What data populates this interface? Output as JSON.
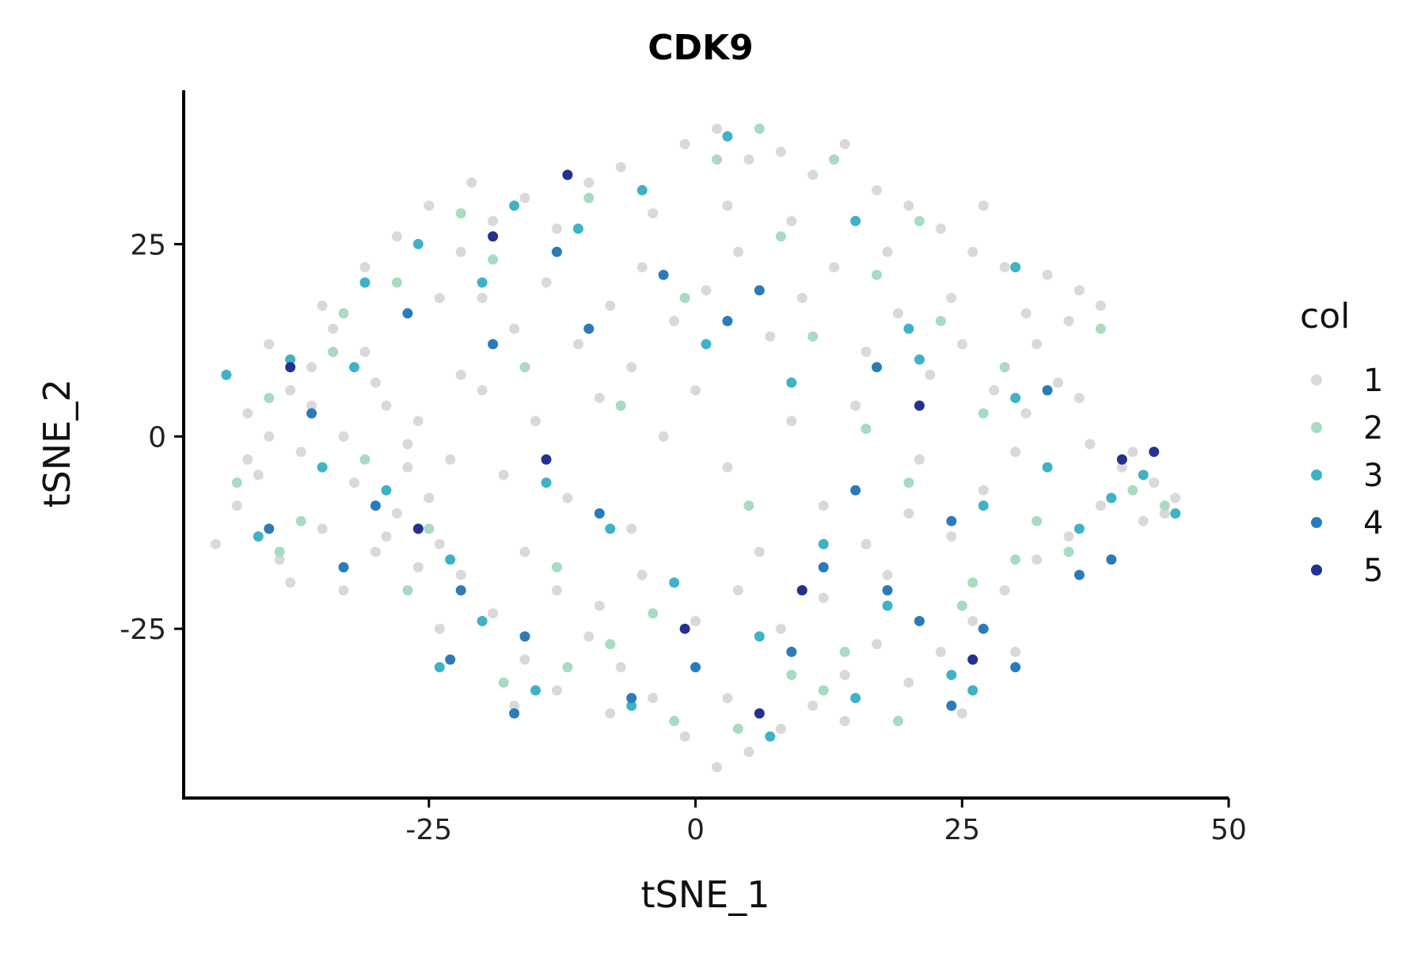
{
  "chart_data": {
    "type": "scatter",
    "title": "CDK9",
    "xlabel": "tSNE_1",
    "ylabel": "tSNE_2",
    "xlim": [
      -48,
      50
    ],
    "ylim": [
      -47,
      45
    ],
    "x_ticks": [
      -25,
      0,
      25,
      50
    ],
    "x_tick_labels": [
      "-25",
      "0",
      "25",
      "50"
    ],
    "y_ticks": [
      -25,
      0,
      25
    ],
    "y_tick_labels": [
      "-25",
      "0",
      "25"
    ],
    "grid": false,
    "legend": {
      "title": "col",
      "placement": "right",
      "entries": [
        {
          "label": "1",
          "color": "#d9d9d9"
        },
        {
          "label": "2",
          "color": "#a8dbc1"
        },
        {
          "label": "3",
          "color": "#3fb2c6"
        },
        {
          "label": "4",
          "color": "#2b7bb9"
        },
        {
          "label": "5",
          "color": "#23318f"
        }
      ]
    },
    "series": [
      {
        "name": "1",
        "color": "#d9d9d9",
        "points": [
          [
            -45,
            -14
          ],
          [
            -44,
            8
          ],
          [
            -43,
            -9
          ],
          [
            -42,
            3
          ],
          [
            -41,
            -5
          ],
          [
            -40,
            12
          ],
          [
            -39,
            -16
          ],
          [
            -38,
            6
          ],
          [
            -37,
            -2
          ],
          [
            -36,
            9
          ],
          [
            -35,
            -12
          ],
          [
            -34,
            14
          ],
          [
            -33,
            0
          ],
          [
            -32,
            -6
          ],
          [
            -31,
            11
          ],
          [
            -30,
            -15
          ],
          [
            -29,
            4
          ],
          [
            -28,
            -10
          ],
          [
            -27,
            -1
          ],
          [
            -26,
            -17
          ],
          [
            -26,
            2
          ],
          [
            -25,
            -8
          ],
          [
            -24,
            -14
          ],
          [
            -23,
            -3
          ],
          [
            -22,
            8
          ],
          [
            -31,
            22
          ],
          [
            -28,
            26
          ],
          [
            -25,
            30
          ],
          [
            -22,
            24
          ],
          [
            -19,
            28
          ],
          [
            -16,
            31
          ],
          [
            -13,
            27
          ],
          [
            -10,
            33
          ],
          [
            -7,
            35
          ],
          [
            -4,
            29
          ],
          [
            -1,
            38
          ],
          [
            2,
            40
          ],
          [
            5,
            36
          ],
          [
            8,
            37
          ],
          [
            11,
            34
          ],
          [
            14,
            38
          ],
          [
            17,
            32
          ],
          [
            20,
            30
          ],
          [
            23,
            27
          ],
          [
            26,
            24
          ],
          [
            29,
            22
          ],
          [
            33,
            21
          ],
          [
            36,
            19
          ],
          [
            38,
            17
          ],
          [
            35,
            15
          ],
          [
            31,
            16
          ],
          [
            -20,
            18
          ],
          [
            -17,
            14
          ],
          [
            -14,
            20
          ],
          [
            -11,
            12
          ],
          [
            -8,
            17
          ],
          [
            -5,
            22
          ],
          [
            -2,
            15
          ],
          [
            1,
            19
          ],
          [
            4,
            24
          ],
          [
            7,
            13
          ],
          [
            10,
            18
          ],
          [
            13,
            22
          ],
          [
            16,
            11
          ],
          [
            19,
            16
          ],
          [
            22,
            8
          ],
          [
            25,
            12
          ],
          [
            28,
            6
          ],
          [
            31,
            3
          ],
          [
            34,
            7
          ],
          [
            37,
            -1
          ],
          [
            40,
            -4
          ],
          [
            43,
            -6
          ],
          [
            45,
            -8
          ],
          [
            42,
            -11
          ],
          [
            38,
            -9
          ],
          [
            35,
            -13
          ],
          [
            32,
            -16
          ],
          [
            29,
            -20
          ],
          [
            26,
            -24
          ],
          [
            23,
            -28
          ],
          [
            20,
            -32
          ],
          [
            17,
            -27
          ],
          [
            14,
            -31
          ],
          [
            11,
            -35
          ],
          [
            8,
            -38
          ],
          [
            5,
            -41
          ],
          [
            2,
            -43
          ],
          [
            -1,
            -39
          ],
          [
            -4,
            -34
          ],
          [
            -7,
            -30
          ],
          [
            -10,
            -26
          ],
          [
            -13,
            -33
          ],
          [
            -16,
            -29
          ],
          [
            -19,
            -23
          ],
          [
            -22,
            -18
          ],
          [
            -18,
            -5
          ],
          [
            -15,
            2
          ],
          [
            -12,
            -8
          ],
          [
            -9,
            5
          ],
          [
            -6,
            -12
          ],
          [
            -3,
            0
          ],
          [
            0,
            6
          ],
          [
            3,
            -4
          ],
          [
            6,
            -15
          ],
          [
            9,
            2
          ],
          [
            12,
            -9
          ],
          [
            15,
            4
          ],
          [
            18,
            -18
          ],
          [
            21,
            -3
          ],
          [
            24,
            -13
          ],
          [
            27,
            -7
          ],
          [
            30,
            -2
          ],
          [
            -20,
            6
          ],
          [
            -16,
            -15
          ],
          [
            -13,
            -20
          ],
          [
            -9,
            -22
          ],
          [
            -5,
            -18
          ],
          [
            0,
            -24
          ],
          [
            4,
            -20
          ],
          [
            8,
            -25
          ],
          [
            12,
            -21
          ],
          [
            16,
            -14
          ],
          [
            20,
            -10
          ],
          [
            -35,
            17
          ],
          [
            -42,
            -3
          ],
          [
            -38,
            -19
          ],
          [
            -29,
            -13
          ],
          [
            -24,
            18
          ],
          [
            -21,
            33
          ],
          [
            -6,
            9
          ],
          [
            3,
            30
          ],
          [
            9,
            28
          ],
          [
            18,
            24
          ],
          [
            24,
            18
          ],
          [
            27,
            30
          ],
          [
            32,
            12
          ],
          [
            36,
            5
          ],
          [
            41,
            -2
          ],
          [
            44,
            -10
          ],
          [
            30,
            -28
          ],
          [
            25,
            -36
          ],
          [
            14,
            -37
          ],
          [
            3,
            -34
          ],
          [
            -8,
            -36
          ],
          [
            -17,
            -35
          ],
          [
            -24,
            -25
          ],
          [
            -33,
            -20
          ],
          [
            -40,
            0
          ],
          [
            -36,
            4
          ],
          [
            -30,
            7
          ],
          [
            -27,
            -4
          ]
        ]
      },
      {
        "name": "2",
        "color": "#a8dbc1",
        "points": [
          [
            -43,
            -6
          ],
          [
            -40,
            5
          ],
          [
            -37,
            -11
          ],
          [
            -34,
            11
          ],
          [
            -31,
            -3
          ],
          [
            -28,
            20
          ],
          [
            -25,
            -12
          ],
          [
            -22,
            29
          ],
          [
            -19,
            23
          ],
          [
            -16,
            9
          ],
          [
            -13,
            -17
          ],
          [
            -10,
            31
          ],
          [
            -7,
            4
          ],
          [
            -4,
            -23
          ],
          [
            -1,
            18
          ],
          [
            2,
            36
          ],
          [
            5,
            -9
          ],
          [
            8,
            26
          ],
          [
            11,
            13
          ],
          [
            14,
            -28
          ],
          [
            17,
            21
          ],
          [
            20,
            -6
          ],
          [
            23,
            15
          ],
          [
            26,
            -19
          ],
          [
            29,
            9
          ],
          [
            32,
            -11
          ],
          [
            35,
            -15
          ],
          [
            38,
            14
          ],
          [
            41,
            -7
          ],
          [
            44,
            -9
          ],
          [
            -27,
            -20
          ],
          [
            -18,
            -32
          ],
          [
            -12,
            -30
          ],
          [
            -2,
            -37
          ],
          [
            4,
            -38
          ],
          [
            12,
            -33
          ],
          [
            19,
            -37
          ],
          [
            25,
            -22
          ],
          [
            30,
            -16
          ],
          [
            6,
            40
          ],
          [
            13,
            36
          ],
          [
            21,
            28
          ],
          [
            -33,
            16
          ],
          [
            -39,
            -15
          ],
          [
            -8,
            -27
          ],
          [
            9,
            -31
          ],
          [
            16,
            1
          ],
          [
            27,
            3
          ]
        ]
      },
      {
        "name": "3",
        "color": "#3fb2c6",
        "points": [
          [
            -44,
            8
          ],
          [
            -41,
            -13
          ],
          [
            -38,
            10
          ],
          [
            -35,
            -4
          ],
          [
            -32,
            9
          ],
          [
            -29,
            -7
          ],
          [
            -26,
            25
          ],
          [
            -23,
            -16
          ],
          [
            -20,
            20
          ],
          [
            -17,
            30
          ],
          [
            -14,
            -6
          ],
          [
            -11,
            27
          ],
          [
            -8,
            -12
          ],
          [
            -5,
            32
          ],
          [
            -2,
            -19
          ],
          [
            1,
            12
          ],
          [
            3,
            39
          ],
          [
            6,
            -26
          ],
          [
            9,
            7
          ],
          [
            12,
            -14
          ],
          [
            15,
            28
          ],
          [
            18,
            -22
          ],
          [
            21,
            10
          ],
          [
            24,
            -31
          ],
          [
            27,
            -9
          ],
          [
            30,
            5
          ],
          [
            33,
            -4
          ],
          [
            36,
            -12
          ],
          [
            39,
            -8
          ],
          [
            42,
            -5
          ],
          [
            45,
            -10
          ],
          [
            -24,
            -30
          ],
          [
            -15,
            -33
          ],
          [
            -6,
            -35
          ],
          [
            7,
            -39
          ],
          [
            15,
            -34
          ],
          [
            26,
            -33
          ],
          [
            -31,
            20
          ],
          [
            -20,
            -24
          ],
          [
            10,
            -20
          ],
          [
            20,
            14
          ],
          [
            30,
            22
          ]
        ]
      },
      {
        "name": "4",
        "color": "#2b7bb9",
        "points": [
          [
            -40,
            -12
          ],
          [
            -36,
            3
          ],
          [
            -30,
            -9
          ],
          [
            -27,
            16
          ],
          [
            -22,
            -20
          ],
          [
            -19,
            12
          ],
          [
            -16,
            -26
          ],
          [
            -13,
            24
          ],
          [
            -9,
            -10
          ],
          [
            -6,
            -34
          ],
          [
            -3,
            21
          ],
          [
            0,
            -30
          ],
          [
            3,
            15
          ],
          [
            6,
            19
          ],
          [
            9,
            -28
          ],
          [
            12,
            -17
          ],
          [
            15,
            -7
          ],
          [
            18,
            -20
          ],
          [
            21,
            -24
          ],
          [
            24,
            -11
          ],
          [
            27,
            -25
          ],
          [
            30,
            -30
          ],
          [
            33,
            6
          ],
          [
            36,
            -18
          ],
          [
            39,
            -16
          ],
          [
            -33,
            -17
          ],
          [
            -23,
            -29
          ],
          [
            -10,
            14
          ],
          [
            -17,
            -36
          ],
          [
            17,
            9
          ],
          [
            24,
            -35
          ]
        ]
      },
      {
        "name": "5",
        "color": "#23318f",
        "points": [
          [
            -38,
            9
          ],
          [
            -26,
            -12
          ],
          [
            -19,
            26
          ],
          [
            -14,
            -3
          ],
          [
            -12,
            34
          ],
          [
            -1,
            -25
          ],
          [
            6,
            -36
          ],
          [
            10,
            -20
          ],
          [
            21,
            4
          ],
          [
            26,
            -29
          ],
          [
            40,
            -3
          ],
          [
            43,
            -2
          ]
        ]
      }
    ]
  }
}
